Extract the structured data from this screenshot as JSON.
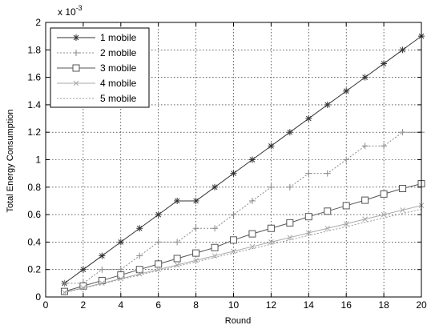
{
  "chart_data": {
    "type": "line",
    "title": "",
    "xlabel": "Round",
    "ylabel": "Total Energy Consumption",
    "y_multiplier": "x 10",
    "y_exponent": "-3",
    "xlim": [
      0,
      20
    ],
    "ylim": [
      0,
      2
    ],
    "xticks": [
      0,
      2,
      4,
      6,
      8,
      10,
      12,
      14,
      16,
      18,
      20
    ],
    "yticks": [
      0,
      0.2,
      0.4,
      0.6,
      0.8,
      1,
      1.2,
      1.4,
      1.6,
      1.8,
      2
    ],
    "xtick_labels": [
      "0",
      "2",
      "4",
      "6",
      "8",
      "10",
      "12",
      "14",
      "16",
      "18",
      "20"
    ],
    "ytick_labels": [
      "0",
      "0.2",
      "0.4",
      "0.6",
      "0.8",
      "1",
      "1.2",
      "1.4",
      "1.6",
      "1.8",
      "2"
    ],
    "grid": true,
    "legend_position": "top-left",
    "x": [
      1,
      2,
      3,
      4,
      5,
      6,
      7,
      8,
      9,
      10,
      11,
      12,
      13,
      14,
      15,
      16,
      17,
      18,
      19,
      20
    ],
    "series": [
      {
        "name": "1 mobile",
        "marker": "asterisk",
        "dash": "solid",
        "color": "#333333",
        "values": [
          0.1,
          0.2,
          0.3,
          0.4,
          0.5,
          0.6,
          0.7,
          0.7,
          0.8,
          0.9,
          1.0,
          1.1,
          1.2,
          1.3,
          1.4,
          1.5,
          1.6,
          1.7,
          1.8,
          1.9
        ]
      },
      {
        "name": "2 mobile",
        "marker": "plus",
        "dash": "dotted",
        "color": "#888888",
        "values": [
          0.1,
          0.1,
          0.2,
          0.2,
          0.3,
          0.4,
          0.4,
          0.5,
          0.5,
          0.6,
          0.7,
          0.8,
          0.8,
          0.9,
          0.9,
          1.0,
          1.1,
          1.1,
          1.2,
          1.2
        ]
      },
      {
        "name": "3 mobile",
        "marker": "square",
        "dash": "solid",
        "color": "#555555",
        "values": [
          0.04,
          0.08,
          0.12,
          0.16,
          0.2,
          0.24,
          0.28,
          0.32,
          0.36,
          0.415,
          0.46,
          0.5,
          0.54,
          0.585,
          0.625,
          0.665,
          0.705,
          0.75,
          0.79,
          0.825
        ]
      },
      {
        "name": "4 mobile",
        "marker": "x",
        "dash": "solid",
        "color": "#aaaaaa",
        "values": [
          0.033,
          0.067,
          0.1,
          0.133,
          0.167,
          0.2,
          0.233,
          0.267,
          0.3,
          0.333,
          0.367,
          0.4,
          0.433,
          0.467,
          0.5,
          0.533,
          0.567,
          0.6,
          0.633,
          0.667
        ]
      },
      {
        "name": "5 mobile",
        "marker": "none",
        "dash": "dotted",
        "color": "#999999",
        "values": [
          0.032,
          0.064,
          0.096,
          0.128,
          0.16,
          0.192,
          0.224,
          0.256,
          0.288,
          0.32,
          0.352,
          0.384,
          0.416,
          0.448,
          0.48,
          0.512,
          0.544,
          0.576,
          0.608,
          0.64
        ]
      }
    ]
  }
}
